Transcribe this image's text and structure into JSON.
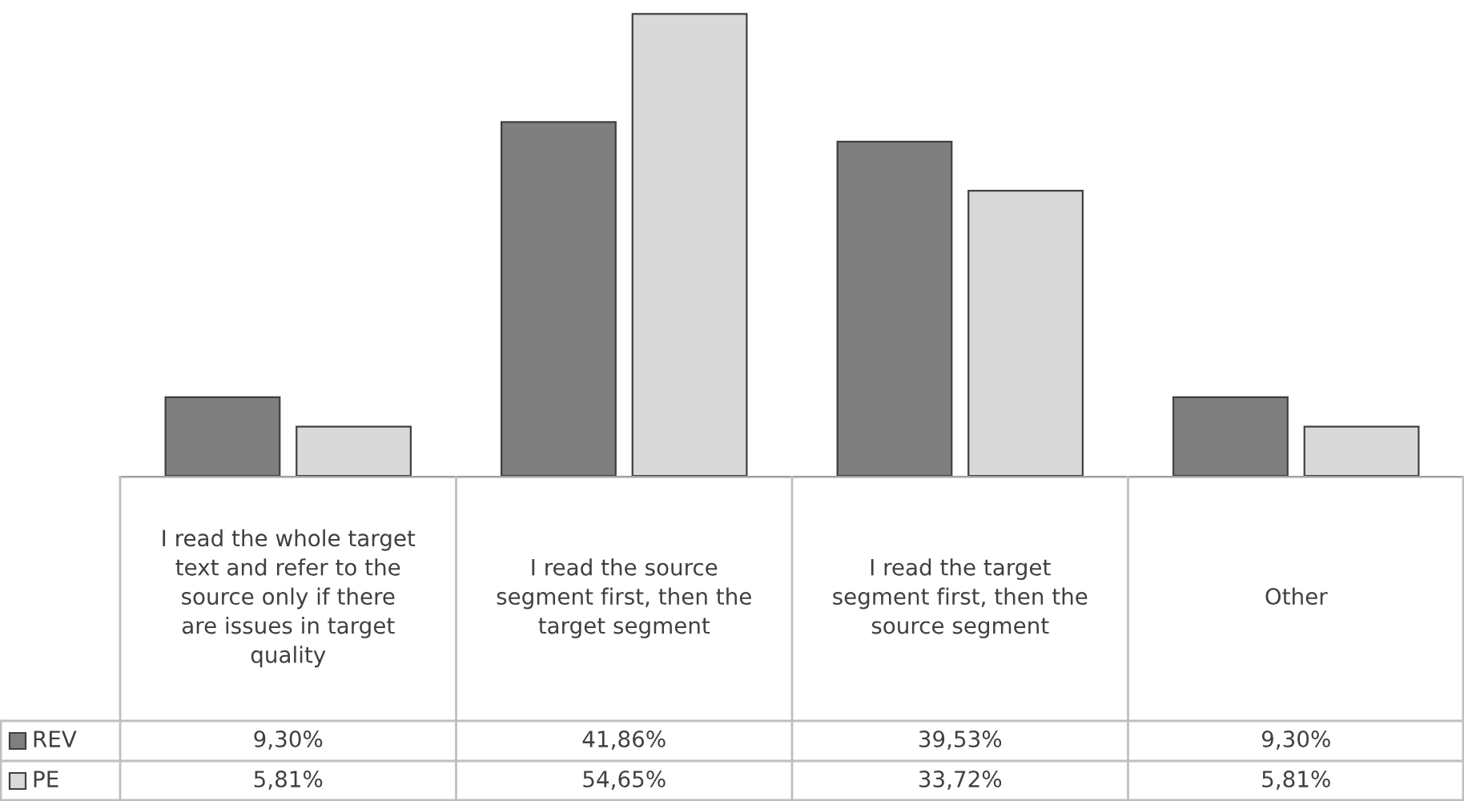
{
  "chart_data": {
    "type": "bar",
    "categories": [
      "I read the whole target text and refer to the source only if there are issues in target quality",
      "I read the source segment first, then the target segment",
      "I read the target segment first, then the source segment",
      "Other"
    ],
    "series": [
      {
        "name": "REV",
        "color": "#7f7f7f",
        "values": [
          9.3,
          41.86,
          39.53,
          9.3
        ],
        "value_labels": [
          "9,30%",
          "41,86%",
          "39,53%",
          "9,30%"
        ]
      },
      {
        "name": "PE",
        "color": "#d9d9d9",
        "values": [
          5.81,
          54.65,
          33.72,
          5.81
        ],
        "value_labels": [
          "5,81%",
          "54,65%",
          "33,72%",
          "5,81%"
        ]
      }
    ],
    "legend": "bottom left"
  }
}
